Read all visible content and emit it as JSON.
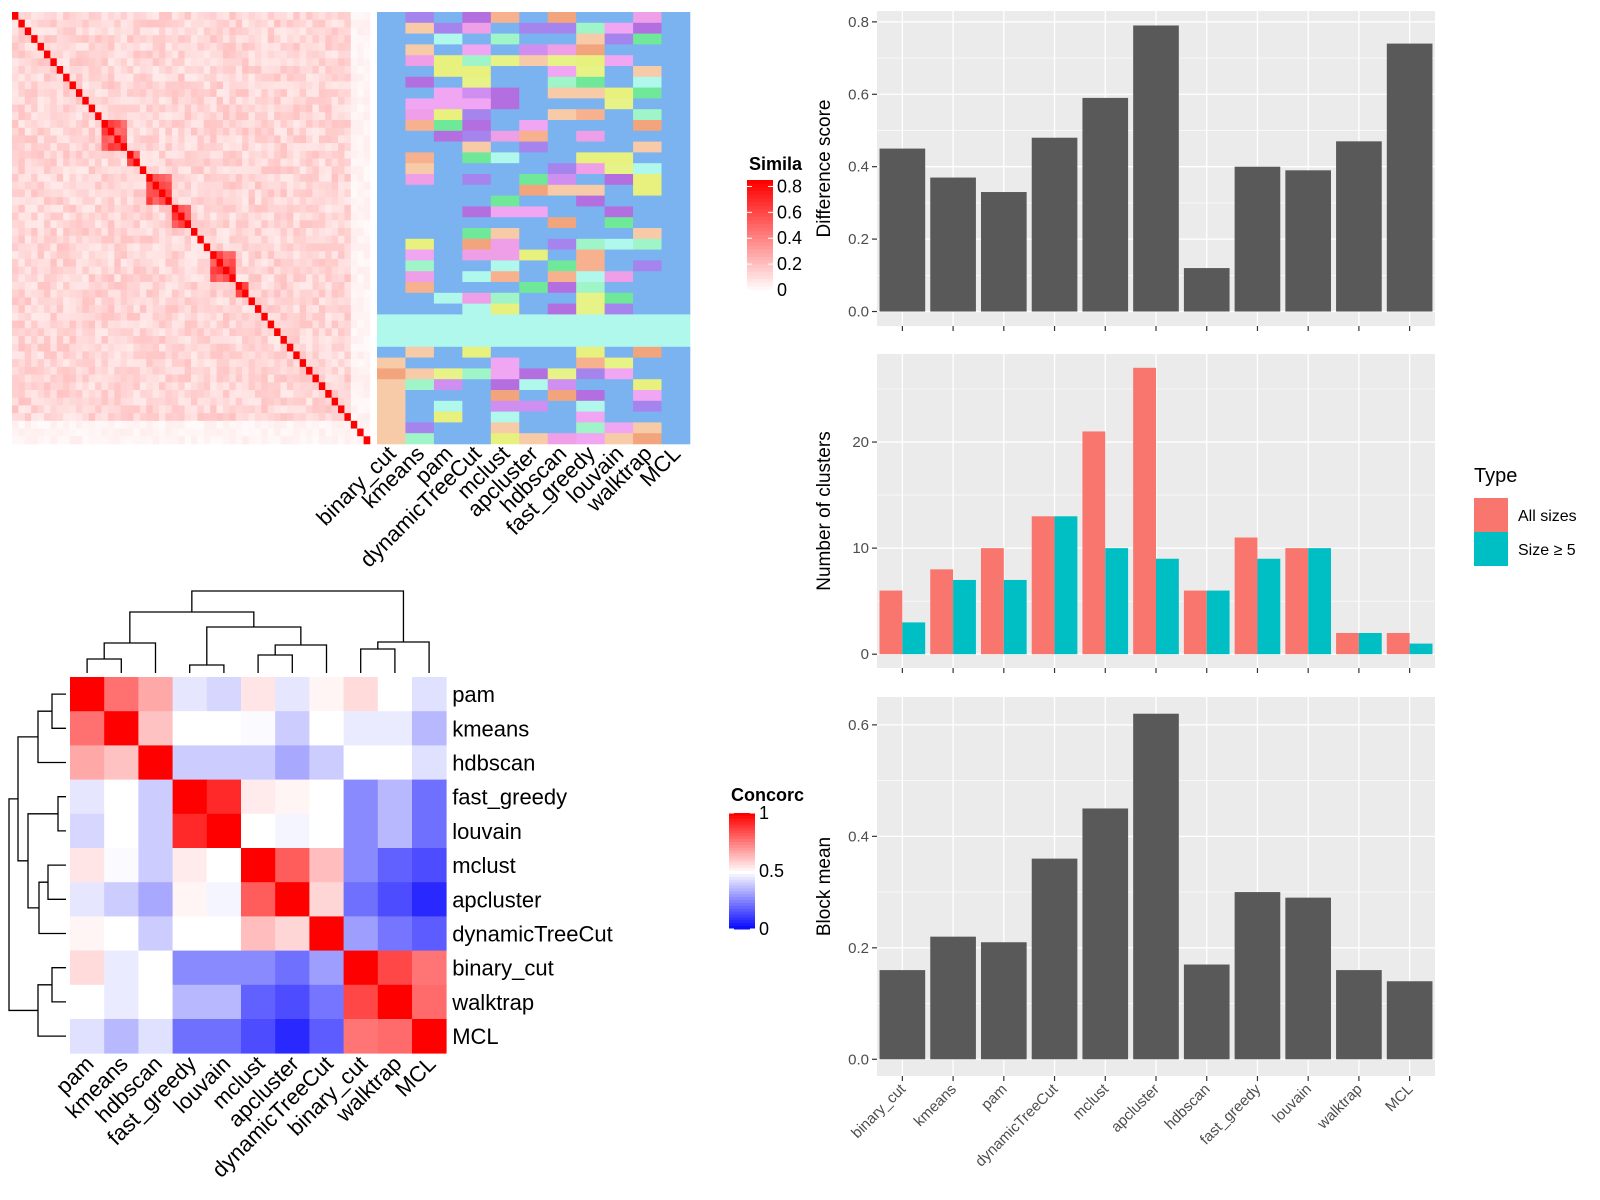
{
  "colors": {
    "panel_bg": "#ebebeb",
    "bar_gray": "#595959",
    "all_sizes": "#F8766D",
    "size_ge_5": "#00BFC4",
    "heat_red": "#ff0000",
    "heat_blue": "#0000ff",
    "cluster_bg": "#7ab3ef"
  },
  "chart_data": [
    {
      "type": "heatmap",
      "id": "cell-similarity",
      "legend_title": "Similarity",
      "legend_title_visible": "Simila",
      "legend_ticks": [
        "0.8",
        "0.6",
        "0.4",
        "0.2",
        "0"
      ],
      "range": [
        0,
        0.85
      ],
      "colorscale": [
        "#ffffff",
        "#ff0000"
      ],
      "annotation_columns": [
        "binary_cut",
        "kmeans",
        "pam",
        "dynamicTreeCut",
        "mclust",
        "apcluster",
        "hdbscan",
        "fast_greedy",
        "louvain",
        "walktrap",
        "MCL"
      ],
      "annotation_palette": [
        "#7ab3ef",
        "#b36fe0",
        "#b0f7ec",
        "#f7caa8",
        "#9ff5c8",
        "#cf8ff0",
        "#f2a47c",
        "#e8f07e",
        "#ee9fe7",
        "#f0a6f2",
        "#6fe89a",
        "#e7f386",
        "#a584ed",
        "#f8b18f"
      ]
    },
    {
      "type": "heatmap",
      "id": "concordance",
      "legend_title": "Concordance",
      "legend_title_visible": "Concorc",
      "legend_ticks": [
        "1",
        "0.5",
        "0"
      ],
      "rows": [
        "pam",
        "kmeans",
        "hdbscan",
        "fast_greedy",
        "louvain",
        "mclust",
        "apcluster",
        "dynamicTreeCut",
        "binary_cut",
        "walktrap",
        "MCL"
      ],
      "columns": [
        "pam",
        "kmeans",
        "hdbscan",
        "fast_greedy",
        "louvain",
        "mclust",
        "apcluster",
        "dynamicTreeCut",
        "binary_cut",
        "walktrap",
        "MCL"
      ],
      "values": [
        [
          1.0,
          0.78,
          0.67,
          0.45,
          0.42,
          0.55,
          0.45,
          0.52,
          0.57,
          0.5,
          0.44
        ],
        [
          0.78,
          1.0,
          0.62,
          0.5,
          0.5,
          0.49,
          0.4,
          0.5,
          0.46,
          0.46,
          0.36
        ],
        [
          0.67,
          0.62,
          1.0,
          0.4,
          0.4,
          0.4,
          0.33,
          0.4,
          0.5,
          0.5,
          0.44
        ],
        [
          0.45,
          0.5,
          0.4,
          1.0,
          0.92,
          0.54,
          0.52,
          0.5,
          0.27,
          0.36,
          0.22
        ],
        [
          0.42,
          0.5,
          0.4,
          0.92,
          1.0,
          0.5,
          0.48,
          0.5,
          0.27,
          0.36,
          0.22
        ],
        [
          0.55,
          0.49,
          0.4,
          0.54,
          0.5,
          1.0,
          0.82,
          0.63,
          0.27,
          0.19,
          0.15
        ],
        [
          0.45,
          0.4,
          0.33,
          0.52,
          0.48,
          0.82,
          1.0,
          0.58,
          0.22,
          0.15,
          0.08
        ],
        [
          0.52,
          0.5,
          0.4,
          0.5,
          0.5,
          0.63,
          0.58,
          1.0,
          0.31,
          0.23,
          0.18
        ],
        [
          0.57,
          0.46,
          0.5,
          0.27,
          0.27,
          0.27,
          0.22,
          0.31,
          1.0,
          0.86,
          0.77
        ],
        [
          0.5,
          0.46,
          0.5,
          0.36,
          0.36,
          0.19,
          0.15,
          0.23,
          0.86,
          1.0,
          0.79
        ],
        [
          0.44,
          0.36,
          0.44,
          0.22,
          0.22,
          0.15,
          0.08,
          0.18,
          0.77,
          0.79,
          1.0
        ]
      ],
      "colorscale": [
        "#0000ff",
        "#ffffff",
        "#ff0000"
      ]
    },
    {
      "type": "bar",
      "id": "difference-score",
      "categories": [
        "binary_cut",
        "kmeans",
        "pam",
        "dynamicTreeCut",
        "mclust",
        "apcluster",
        "hdbscan",
        "fast_greedy",
        "louvain",
        "walktrap",
        "MCL"
      ],
      "values": [
        0.45,
        0.37,
        0.33,
        0.48,
        0.59,
        0.79,
        0.12,
        0.4,
        0.39,
        0.47,
        0.74
      ],
      "xlabel": "",
      "ylabel": "Difference score",
      "ylim": [
        -0.04,
        0.83
      ],
      "yticks": [
        0.0,
        0.2,
        0.4,
        0.6,
        0.8
      ],
      "ytick_labels": [
        "0.0",
        "0.2",
        "0.4",
        "0.6",
        "0.8"
      ],
      "grid": true
    },
    {
      "type": "bar",
      "id": "number-of-clusters",
      "categories": [
        "binary_cut",
        "kmeans",
        "pam",
        "dynamicTreeCut",
        "mclust",
        "apcluster",
        "hdbscan",
        "fast_greedy",
        "louvain",
        "walktrap",
        "MCL"
      ],
      "series": [
        {
          "name": "All sizes",
          "values": [
            6,
            8,
            10,
            13,
            21,
            27,
            6,
            11,
            10,
            2,
            2
          ]
        },
        {
          "name": "Size ≥ 5",
          "values": [
            3,
            7,
            7,
            13,
            10,
            9,
            6,
            9,
            10,
            2,
            1
          ]
        }
      ],
      "xlabel": "",
      "ylabel": "Number of clusters",
      "ylim": [
        -1.3,
        28.3
      ],
      "yticks": [
        0,
        10,
        20
      ],
      "ytick_labels": [
        "0",
        "10",
        "20"
      ],
      "legend_title": "Type",
      "legend_position": "right",
      "grid": true
    },
    {
      "type": "bar",
      "id": "block-mean",
      "categories": [
        "binary_cut",
        "kmeans",
        "pam",
        "dynamicTreeCut",
        "mclust",
        "apcluster",
        "hdbscan",
        "fast_greedy",
        "louvain",
        "walktrap",
        "MCL"
      ],
      "values": [
        0.16,
        0.22,
        0.21,
        0.36,
        0.45,
        0.62,
        0.17,
        0.3,
        0.29,
        0.16,
        0.14
      ],
      "xlabel": "",
      "ylabel": "Block mean",
      "ylim": [
        -0.03,
        0.65
      ],
      "yticks": [
        0.0,
        0.2,
        0.4,
        0.6
      ],
      "ytick_labels": [
        "0.0",
        "0.2",
        "0.4",
        "0.6"
      ],
      "grid": true
    }
  ]
}
